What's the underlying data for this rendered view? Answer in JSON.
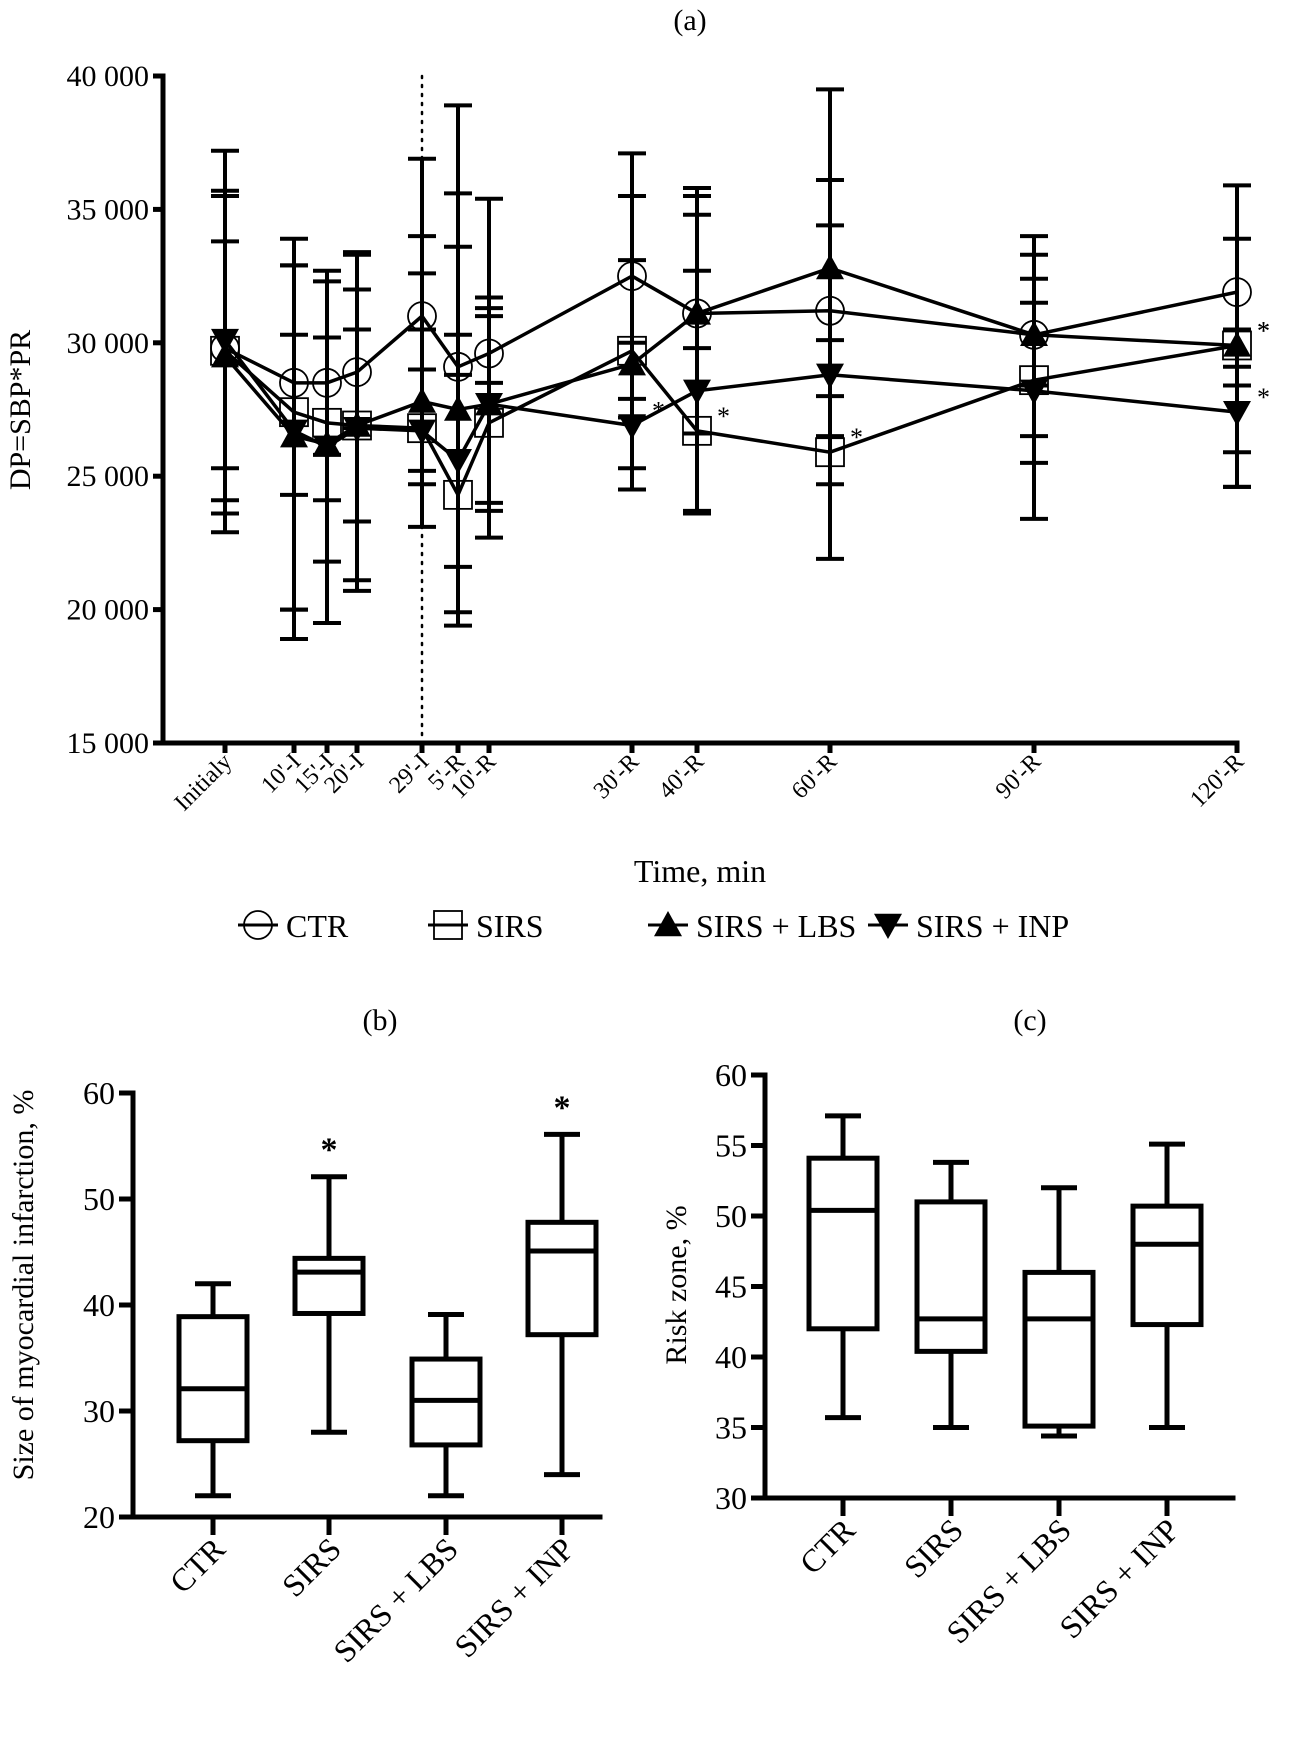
{
  "chart_data": [
    {
      "panel": "(a)",
      "type": "line",
      "title": "(a)",
      "xlabel": "Time, min",
      "ylabel": "DP=SBP*PR",
      "ylim": [
        15000,
        40000
      ],
      "yticks": [
        15000,
        20000,
        25000,
        30000,
        35000,
        40000
      ],
      "ytick_labels": [
        "15 000",
        "20 000",
        "25 000",
        "30 000",
        "35 000",
        "40 000"
      ],
      "categories": [
        "Initialy",
        "10'-I",
        "15'-I",
        "20'-I",
        "29'-I",
        "5'-R",
        "10'-R",
        "30'-R",
        "40'-R",
        "60'-R",
        "90'-R",
        "120'-R"
      ],
      "x_minutes": [
        0,
        10,
        15,
        20,
        29,
        34,
        39,
        59,
        69,
        89,
        119,
        149
      ],
      "vertical_marker_after": "29'-I",
      "legend_position": "bottom",
      "series": [
        {
          "name": "CTR",
          "marker": "open-circle",
          "values": [
            29800,
            28500,
            28500,
            28900,
            31000,
            29100,
            29600,
            32500,
            31100,
            31200,
            30300,
            31900
          ],
          "err_low": [
            25300,
            24300,
            25800,
            26800,
            29000,
            28800,
            28500,
            30000,
            29800,
            26500,
            28400,
            29100
          ],
          "err_high": [
            33800,
            30300,
            30200,
            30500,
            32600,
            33600,
            31700,
            33100,
            34800,
            34400,
            32400,
            33900
          ],
          "significance": []
        },
        {
          "name": "SIRS",
          "marker": "open-square",
          "values": [
            29700,
            27400,
            27000,
            26900,
            26800,
            24300,
            27000,
            29700,
            26700,
            25900,
            28600,
            29900
          ],
          "err_low": [
            23600,
            20000,
            21800,
            21100,
            24700,
            19900,
            23700,
            25300,
            23700,
            24700,
            23400,
            24600
          ],
          "err_high": [
            35700,
            32900,
            32300,
            33300,
            36900,
            38900,
            35400,
            37100,
            35800,
            39500,
            33300,
            35900
          ],
          "significance": [
            "40'-R",
            "60'-R",
            "120'-R"
          ]
        },
        {
          "name": "SIRS + LBS",
          "marker": "filled-triangle-up",
          "values": [
            29500,
            26500,
            26200,
            26900,
            27800,
            27500,
            27700,
            29200,
            31100,
            32800,
            30300,
            29900
          ],
          "err_low": [
            22900,
            18900,
            19500,
            20700,
            23100,
            19400,
            22700,
            27200,
            26600,
            21900,
            25500,
            25900
          ],
          "err_high": [
            37200,
            33900,
            32700,
            33400,
            34000,
            35600,
            31300,
            35500,
            35500,
            36100,
            34000,
            30500
          ],
          "significance": [
            "120'-R"
          ]
        },
        {
          "name": "SIRS + INP",
          "marker": "filled-triangle-down",
          "values": [
            30100,
            26700,
            26100,
            26800,
            26700,
            25600,
            27700,
            26900,
            28200,
            28800,
            28200,
            27400
          ],
          "err_low": [
            24100,
            20000,
            24100,
            23300,
            25200,
            21600,
            24000,
            24500,
            23600,
            28000,
            26500,
            24600
          ],
          "err_high": [
            35500,
            32900,
            30200,
            32000,
            30500,
            30300,
            31000,
            27900,
            32700,
            30100,
            31500,
            28400
          ],
          "significance": [
            "30'-R",
            "120'-R"
          ]
        }
      ]
    },
    {
      "panel": "(b)",
      "type": "box",
      "title": "(b)",
      "xlabel": "",
      "ylabel": "Size of  myocardial infarction, %",
      "ylim": [
        20,
        60
      ],
      "yticks": [
        20,
        30,
        40,
        50,
        60
      ],
      "categories": [
        "CTR",
        "SIRS",
        "SIRS + LBS",
        "SIRS + INP"
      ],
      "boxes": [
        {
          "min": 22,
          "q1": 27.2,
          "median": 32.1,
          "q3": 38.9,
          "max": 42,
          "significant": false
        },
        {
          "min": 28,
          "q1": 39.2,
          "median": 43.1,
          "q3": 44.4,
          "max": 52.1,
          "significant": true
        },
        {
          "min": 22,
          "q1": 26.8,
          "median": 31.0,
          "q3": 34.9,
          "max": 39.1,
          "significant": false
        },
        {
          "min": 24,
          "q1": 37.2,
          "median": 45.1,
          "q3": 47.8,
          "max": 56.1,
          "significant": true
        }
      ],
      "significance_marker": "*"
    },
    {
      "panel": "(c)",
      "type": "box",
      "title": "(c)",
      "xlabel": "",
      "ylabel": "Risk zone, %",
      "ylim": [
        30,
        60
      ],
      "yticks": [
        30,
        35,
        40,
        45,
        50,
        55,
        60
      ],
      "categories": [
        "CTR",
        "SIRS",
        "SIRS + LBS",
        "SIRS + INP"
      ],
      "boxes": [
        {
          "min": 35.7,
          "q1": 42.0,
          "median": 50.4,
          "q3": 54.1,
          "max": 57.1,
          "significant": false
        },
        {
          "min": 35.0,
          "q1": 40.4,
          "median": 42.7,
          "q3": 51.0,
          "max": 53.8,
          "significant": false
        },
        {
          "min": 34.4,
          "q1": 35.1,
          "median": 42.7,
          "q3": 46.0,
          "max": 52.0,
          "significant": false
        },
        {
          "min": 35.0,
          "q1": 42.3,
          "median": 48.0,
          "q3": 50.7,
          "max": 55.1,
          "significant": false
        }
      ],
      "significance_marker": "*"
    }
  ]
}
